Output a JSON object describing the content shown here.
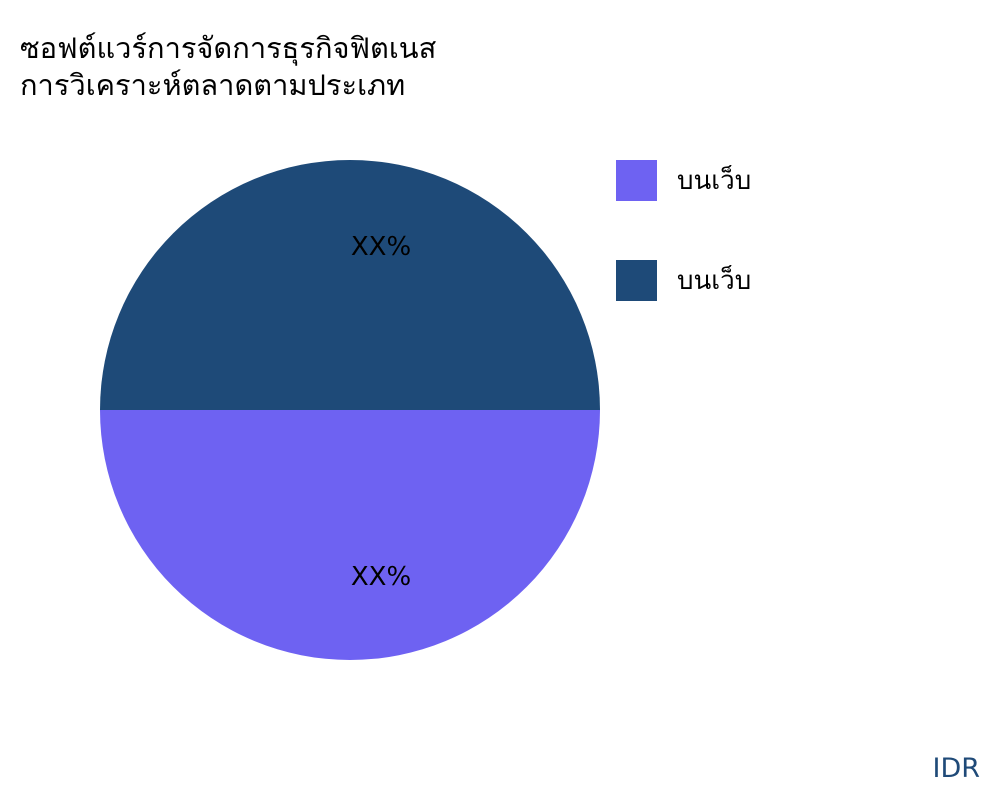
{
  "chart_data": {
    "type": "pie",
    "title_lines": [
      "ซอฟต์แวร์การจัดการธุรกิจฟิตเนส",
      "การวิเคราะห์ตลาดตามประเภท"
    ],
    "slices": [
      {
        "name": "บนเว็บ",
        "value": 50,
        "label": "XX%",
        "color": "#6e62f2"
      },
      {
        "name": "บนเว็บ",
        "value": 50,
        "label": "XX%",
        "color": "#1e4a78"
      }
    ],
    "legend_position": "right"
  },
  "footer": {
    "brand": "IDR"
  }
}
